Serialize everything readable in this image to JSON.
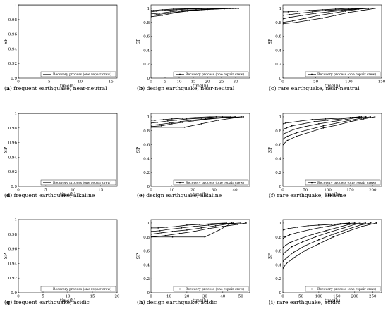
{
  "chart_data": [
    {
      "panel": "a",
      "type": "line",
      "caption": "frequent earthquake, near-neutral",
      "xlabel": "time(h)",
      "ylabel": "SP",
      "xlim": [
        0,
        16
      ],
      "ylim": [
        0.9,
        1.0
      ],
      "xticks": [
        0,
        5,
        10,
        15
      ],
      "yticks": [
        0.9,
        0.92,
        0.94,
        0.96,
        0.98,
        1
      ],
      "legend": {
        "label": "Recovery process (one repair crew)",
        "position": "bottom-right",
        "marker": "none"
      },
      "series": [
        {
          "x": [
            0,
            16
          ],
          "y": [
            1,
            1
          ]
        }
      ]
    },
    {
      "panel": "b",
      "type": "line",
      "caption": "design earthquake, near-neutral",
      "xlabel": "time(h)",
      "ylabel": "SP",
      "xlim": [
        0,
        35
      ],
      "ylim": [
        0.0,
        1.05
      ],
      "xticks": [
        0,
        5,
        10,
        15,
        20,
        25,
        30
      ],
      "yticks": [
        0,
        0.2,
        0.4,
        0.6,
        0.8,
        1
      ],
      "legend": {
        "label": "Recovery process (one repair crew)",
        "position": "bottom-right",
        "marker": "dot"
      },
      "series": [
        {
          "x": [
            0,
            2,
            6,
            10,
            14,
            20,
            26,
            31
          ],
          "y": [
            0.9,
            0.91,
            0.93,
            0.95,
            0.97,
            0.985,
            0.995,
            1
          ]
        },
        {
          "x": [
            0,
            3,
            7,
            11,
            16,
            22,
            28,
            30
          ],
          "y": [
            0.92,
            0.93,
            0.95,
            0.97,
            0.98,
            0.99,
            1,
            1
          ]
        },
        {
          "x": [
            0,
            2,
            5,
            9,
            13,
            18,
            24,
            29
          ],
          "y": [
            0.95,
            0.96,
            0.97,
            0.98,
            0.99,
            0.995,
            1,
            1
          ]
        },
        {
          "x": [
            0,
            1,
            4,
            8,
            12,
            17,
            23,
            28
          ],
          "y": [
            0.97,
            0.97,
            0.98,
            0.99,
            0.995,
            1,
            1,
            1
          ]
        },
        {
          "x": [
            0,
            4,
            9,
            13,
            18,
            27
          ],
          "y": [
            0.88,
            0.9,
            0.94,
            0.96,
            0.98,
            1
          ]
        }
      ]
    },
    {
      "panel": "c",
      "type": "line",
      "caption": "rare earthquake, near-neutral",
      "xlabel": "time(h)",
      "ylabel": "SP",
      "xlim": [
        0,
        150
      ],
      "ylim": [
        0.0,
        1.05
      ],
      "xticks": [
        0,
        50,
        100,
        150
      ],
      "yticks": [
        0,
        0.2,
        0.4,
        0.6,
        0.8,
        1
      ],
      "legend": {
        "label": "Recovery process (one repair crew)",
        "position": "bottom-right",
        "marker": "dot"
      },
      "series": [
        {
          "x": [
            0,
            20,
            40,
            60,
            80,
            100,
            120,
            140
          ],
          "y": [
            0.78,
            0.8,
            0.83,
            0.86,
            0.9,
            0.94,
            0.97,
            1
          ]
        },
        {
          "x": [
            0,
            15,
            35,
            55,
            75,
            95,
            115,
            130
          ],
          "y": [
            0.8,
            0.82,
            0.86,
            0.9,
            0.93,
            0.96,
            0.99,
            1
          ]
        },
        {
          "x": [
            0,
            10,
            30,
            50,
            70,
            90,
            110,
            125
          ],
          "y": [
            0.85,
            0.87,
            0.9,
            0.93,
            0.95,
            0.97,
            0.99,
            1
          ]
        },
        {
          "x": [
            0,
            10,
            25,
            45,
            65,
            85,
            105,
            118
          ],
          "y": [
            0.9,
            0.91,
            0.93,
            0.95,
            0.97,
            0.98,
            0.99,
            1
          ]
        },
        {
          "x": [
            0,
            8,
            22,
            40,
            60,
            80,
            100,
            112
          ],
          "y": [
            0.95,
            0.95,
            0.96,
            0.97,
            0.98,
            0.99,
            1,
            1
          ]
        }
      ]
    },
    {
      "panel": "d",
      "type": "line",
      "caption": "frequent earthquake, alkaline",
      "xlabel": "time(h)",
      "ylabel": "SP",
      "xlim": [
        0,
        18
      ],
      "ylim": [
        0.9,
        1.0
      ],
      "xticks": [
        0,
        5,
        10,
        15
      ],
      "yticks": [
        0.9,
        0.92,
        0.94,
        0.96,
        0.98,
        1
      ],
      "legend": {
        "label": "Recovery process (one repair crew)",
        "position": "bottom-right",
        "marker": "none"
      },
      "series": [
        {
          "x": [
            0,
            18
          ],
          "y": [
            1,
            1
          ]
        }
      ]
    },
    {
      "panel": "e",
      "type": "line",
      "caption": "design earthquake, alkaline",
      "xlabel": "time(h)",
      "ylabel": "SP",
      "xlim": [
        0,
        47
      ],
      "ylim": [
        0.0,
        1.05
      ],
      "xticks": [
        0,
        10,
        20,
        30,
        40
      ],
      "yticks": [
        0,
        0.2,
        0.4,
        0.6,
        0.8,
        1
      ],
      "legend": {
        "label": "Recovery process (one repair crew)",
        "position": "bottom-right",
        "marker": "dot"
      },
      "series": [
        {
          "x": [
            0,
            5,
            10,
            15,
            20,
            28,
            36,
            44
          ],
          "y": [
            0.86,
            0.87,
            0.9,
            0.92,
            0.94,
            0.97,
            0.99,
            1
          ]
        },
        {
          "x": [
            0,
            4,
            9,
            14,
            19,
            26,
            34,
            40
          ],
          "y": [
            0.88,
            0.89,
            0.91,
            0.93,
            0.95,
            0.97,
            0.99,
            1
          ]
        },
        {
          "x": [
            0,
            3,
            8,
            12,
            17,
            24,
            31,
            38
          ],
          "y": [
            0.91,
            0.92,
            0.94,
            0.95,
            0.97,
            0.98,
            1,
            1
          ]
        },
        {
          "x": [
            0,
            2,
            6,
            10,
            15,
            21,
            28,
            34
          ],
          "y": [
            0.95,
            0.95,
            0.96,
            0.97,
            0.98,
            0.99,
            1,
            1
          ]
        },
        {
          "x": [
            0,
            16,
            24,
            32,
            43
          ],
          "y": [
            0.85,
            0.85,
            0.9,
            0.95,
            1
          ]
        }
      ]
    },
    {
      "panel": "f",
      "type": "line",
      "caption": "rare earthquake, alkaline",
      "xlabel": "time(h)",
      "ylabel": "SP",
      "xlim": [
        0,
        220
      ],
      "ylim": [
        0.0,
        1.05
      ],
      "xticks": [
        0,
        50,
        100,
        150,
        200
      ],
      "yticks": [
        0,
        0.2,
        0.4,
        0.6,
        0.8,
        1
      ],
      "legend": {
        "label": "Recovery process (one repair crew)",
        "position": "bottom-right",
        "marker": "dot"
      },
      "series": [
        {
          "x": [
            0,
            10,
            30,
            60,
            90,
            120,
            150,
            180,
            205
          ],
          "y": [
            0.6,
            0.66,
            0.72,
            0.78,
            0.84,
            0.88,
            0.93,
            0.97,
            1
          ]
        },
        {
          "x": [
            0,
            10,
            30,
            60,
            90,
            120,
            150,
            175,
            195
          ],
          "y": [
            0.68,
            0.72,
            0.77,
            0.82,
            0.87,
            0.91,
            0.95,
            0.98,
            1
          ]
        },
        {
          "x": [
            0,
            10,
            25,
            50,
            80,
            110,
            140,
            165,
            185
          ],
          "y": [
            0.75,
            0.78,
            0.82,
            0.86,
            0.9,
            0.93,
            0.96,
            0.99,
            1
          ]
        },
        {
          "x": [
            0,
            8,
            20,
            45,
            70,
            100,
            130,
            155,
            175
          ],
          "y": [
            0.82,
            0.84,
            0.87,
            0.9,
            0.93,
            0.95,
            0.97,
            0.99,
            1
          ]
        },
        {
          "x": [
            0,
            6,
            18,
            40,
            65,
            95,
            125,
            150,
            170
          ],
          "y": [
            0.9,
            0.91,
            0.92,
            0.94,
            0.96,
            0.97,
            0.98,
            0.99,
            1
          ]
        }
      ]
    },
    {
      "panel": "g",
      "type": "line",
      "caption": "frequent earthquake, acidic",
      "xlabel": "time(h)",
      "ylabel": "SP",
      "xlim": [
        0,
        20
      ],
      "ylim": [
        0.9,
        1.0
      ],
      "xticks": [
        0,
        5,
        10,
        15,
        20
      ],
      "yticks": [
        0.9,
        0.92,
        0.94,
        0.96,
        0.98,
        1
      ],
      "legend": {
        "label": "Recovery process (one repair crew)",
        "position": "bottom-right",
        "marker": "none"
      },
      "series": [
        {
          "x": [
            0,
            20
          ],
          "y": [
            1,
            1
          ]
        }
      ]
    },
    {
      "panel": "h",
      "type": "line",
      "caption": "design earthquake, acidic",
      "xlabel": "time(h)",
      "ylabel": "SP",
      "xlim": [
        0,
        55
      ],
      "ylim": [
        0.0,
        1.05
      ],
      "xticks": [
        0,
        10,
        20,
        30,
        40,
        50
      ],
      "yticks": [
        0,
        0.2,
        0.4,
        0.6,
        0.8,
        1
      ],
      "legend": {
        "label": "Recovery process (one repair crew)",
        "position": "bottom-right",
        "marker": "dot"
      },
      "series": [
        {
          "x": [
            0,
            8,
            16,
            24,
            32,
            40,
            48,
            53
          ],
          "y": [
            0.8,
            0.82,
            0.85,
            0.88,
            0.92,
            0.95,
            0.98,
            1
          ]
        },
        {
          "x": [
            0,
            6,
            12,
            20,
            28,
            36,
            44,
            50
          ],
          "y": [
            0.84,
            0.86,
            0.88,
            0.9,
            0.93,
            0.96,
            0.99,
            1
          ]
        },
        {
          "x": [
            0,
            5,
            10,
            17,
            24,
            32,
            40,
            46
          ],
          "y": [
            0.88,
            0.89,
            0.91,
            0.93,
            0.95,
            0.97,
            0.99,
            1
          ]
        },
        {
          "x": [
            0,
            4,
            9,
            14,
            20,
            27,
            34,
            42
          ],
          "y": [
            0.93,
            0.93,
            0.94,
            0.95,
            0.97,
            0.98,
            0.99,
            1
          ]
        },
        {
          "x": [
            0,
            12,
            30,
            38,
            45
          ],
          "y": [
            0.8,
            0.8,
            0.8,
            0.9,
            1
          ]
        }
      ]
    },
    {
      "panel": "i",
      "type": "line",
      "caption": "rare earthquake, acidic",
      "xlabel": "time(h)",
      "ylabel": "SP",
      "xlim": [
        0,
        275
      ],
      "ylim": [
        0.0,
        1.05
      ],
      "xticks": [
        0,
        50,
        100,
        150,
        200,
        250
      ],
      "yticks": [
        0,
        0.2,
        0.4,
        0.6,
        0.8,
        1
      ],
      "legend": {
        "label": "Recovery process (one repair crew)",
        "position": "bottom-right",
        "marker": "dot"
      },
      "series": [
        {
          "x": [
            0,
            10,
            30,
            60,
            100,
            140,
            180,
            220,
            260
          ],
          "y": [
            0.35,
            0.42,
            0.5,
            0.6,
            0.7,
            0.8,
            0.88,
            0.95,
            1
          ]
        },
        {
          "x": [
            0,
            10,
            30,
            60,
            100,
            140,
            180,
            215,
            245
          ],
          "y": [
            0.45,
            0.5,
            0.58,
            0.67,
            0.76,
            0.84,
            0.91,
            0.97,
            1
          ]
        },
        {
          "x": [
            0,
            10,
            25,
            55,
            90,
            130,
            170,
            200,
            230
          ],
          "y": [
            0.55,
            0.6,
            0.66,
            0.73,
            0.8,
            0.87,
            0.93,
            0.98,
            1
          ]
        },
        {
          "x": [
            0,
            8,
            20,
            50,
            85,
            120,
            155,
            185,
            215
          ],
          "y": [
            0.65,
            0.68,
            0.72,
            0.78,
            0.84,
            0.89,
            0.94,
            0.98,
            1
          ]
        },
        {
          "x": [
            0,
            6,
            18,
            45,
            80,
            110,
            145,
            175,
            200
          ],
          "y": [
            0.78,
            0.8,
            0.83,
            0.87,
            0.91,
            0.94,
            0.97,
            0.99,
            1
          ]
        },
        {
          "x": [
            0,
            5,
            15,
            40,
            70,
            100,
            135,
            160,
            185
          ],
          "y": [
            0.9,
            0.91,
            0.92,
            0.94,
            0.96,
            0.97,
            0.98,
            0.99,
            1
          ]
        }
      ]
    }
  ]
}
